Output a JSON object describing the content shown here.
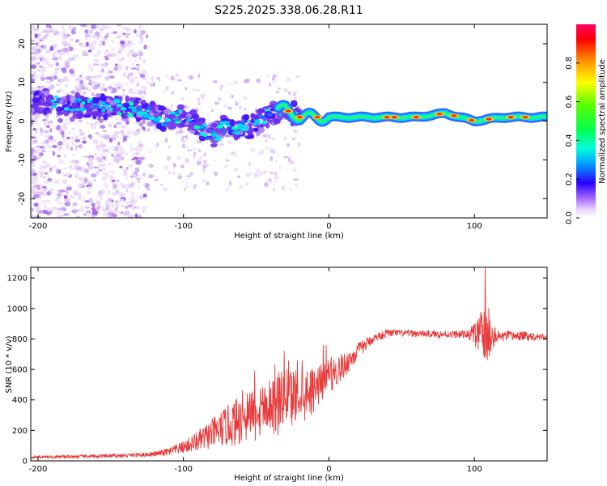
{
  "title": "S225.2025.338.06.28.R11",
  "chart_data": [
    {
      "type": "heatmap",
      "xlabel": "Height of straight line (km)",
      "ylabel": "Frequency (Hz)",
      "xlim": [
        -205,
        150
      ],
      "ylim": [
        -25,
        25
      ],
      "xticks": [
        -200,
        -100,
        0,
        100
      ],
      "yticks": [
        -20,
        -10,
        0,
        10,
        20
      ],
      "colorbar": {
        "label": "Normalized spectral amplitude",
        "range": [
          0,
          1
        ],
        "ticks": [
          "0.0",
          "0.2",
          "0.4",
          "0.6",
          "0.8"
        ],
        "tick_values": [
          0.0,
          0.2,
          0.4,
          0.6,
          0.8
        ]
      },
      "ridge": [
        {
          "x": -205,
          "f": 5.0
        },
        {
          "x": -190,
          "f": 5.0
        },
        {
          "x": -175,
          "f": 4.0
        },
        {
          "x": -160,
          "f": 4.0
        },
        {
          "x": -145,
          "f": 3.5
        },
        {
          "x": -130,
          "f": 3.0
        },
        {
          "x": -120,
          "f": 1.5
        },
        {
          "x": -110,
          "f": 0.0
        },
        {
          "x": -100,
          "f": 2.0
        },
        {
          "x": -90,
          "f": -1.0
        },
        {
          "x": -80,
          "f": -4.0
        },
        {
          "x": -70,
          "f": -1.0
        },
        {
          "x": -60,
          "f": -2.0
        },
        {
          "x": -50,
          "f": -1.0
        },
        {
          "x": -40,
          "f": 2.0
        },
        {
          "x": -30,
          "f": 3.0
        },
        {
          "x": -20,
          "f": 1.0
        },
        {
          "x": -10,
          "f": 1.0
        },
        {
          "x": 0,
          "f": 1.0
        },
        {
          "x": 20,
          "f": 1.0
        },
        {
          "x": 60,
          "f": 1.0
        },
        {
          "x": 80,
          "f": 2.0
        },
        {
          "x": 100,
          "f": 0.0
        },
        {
          "x": 120,
          "f": 1.0
        },
        {
          "x": 150,
          "f": 1.0
        }
      ]
    },
    {
      "type": "line",
      "xlabel": "Height of straight line (km)",
      "ylabel": "SNR (10 * v/v)",
      "xlim": [
        -205,
        150
      ],
      "ylim": [
        0,
        1270
      ],
      "xticks": [
        -200,
        -100,
        0,
        100
      ],
      "yticks": [
        0,
        200,
        400,
        600,
        800,
        1000,
        1200
      ],
      "series": [
        {
          "name": "SNR",
          "color": "#e83a3a",
          "points": [
            {
              "x": -205,
              "y": 25
            },
            {
              "x": -180,
              "y": 28
            },
            {
              "x": -160,
              "y": 30
            },
            {
              "x": -140,
              "y": 35
            },
            {
              "x": -120,
              "y": 45
            },
            {
              "x": -110,
              "y": 60
            },
            {
              "x": -100,
              "y": 90
            },
            {
              "x": -90,
              "y": 130
            },
            {
              "x": -80,
              "y": 180
            },
            {
              "x": -70,
              "y": 230
            },
            {
              "x": -60,
              "y": 270
            },
            {
              "x": -50,
              "y": 300
            },
            {
              "x": -40,
              "y": 330
            },
            {
              "x": -30,
              "y": 360
            },
            {
              "x": -20,
              "y": 400
            },
            {
              "x": -10,
              "y": 460
            },
            {
              "x": 0,
              "y": 560
            },
            {
              "x": 10,
              "y": 620
            },
            {
              "x": 20,
              "y": 720
            },
            {
              "x": 30,
              "y": 800
            },
            {
              "x": 40,
              "y": 840
            },
            {
              "x": 60,
              "y": 835
            },
            {
              "x": 80,
              "y": 830
            },
            {
              "x": 100,
              "y": 830
            },
            {
              "x": 105,
              "y": 830
            },
            {
              "x": 108,
              "y": 830
            },
            {
              "x": 115,
              "y": 815
            },
            {
              "x": 130,
              "y": 820
            },
            {
              "x": 150,
              "y": 815
            }
          ],
          "noise": [
            {
              "x": -205,
              "a": 8
            },
            {
              "x": -120,
              "a": 15
            },
            {
              "x": -100,
              "a": 40
            },
            {
              "x": -80,
              "a": 100
            },
            {
              "x": -60,
              "a": 170
            },
            {
              "x": -40,
              "a": 220
            },
            {
              "x": -25,
              "a": 230
            },
            {
              "x": -10,
              "a": 150
            },
            {
              "x": 0,
              "a": 120
            },
            {
              "x": 15,
              "a": 70
            },
            {
              "x": 30,
              "a": 30
            },
            {
              "x": 50,
              "a": 22
            },
            {
              "x": 95,
              "a": 25
            },
            {
              "x": 103,
              "a": 110
            },
            {
              "x": 106,
              "a": 240
            },
            {
              "x": 108,
              "a": 280
            },
            {
              "x": 111,
              "a": 120
            },
            {
              "x": 116,
              "a": 40
            },
            {
              "x": 150,
              "a": 22
            }
          ],
          "peak": {
            "x": 107.5,
            "y": 1270
          }
        }
      ]
    }
  ]
}
